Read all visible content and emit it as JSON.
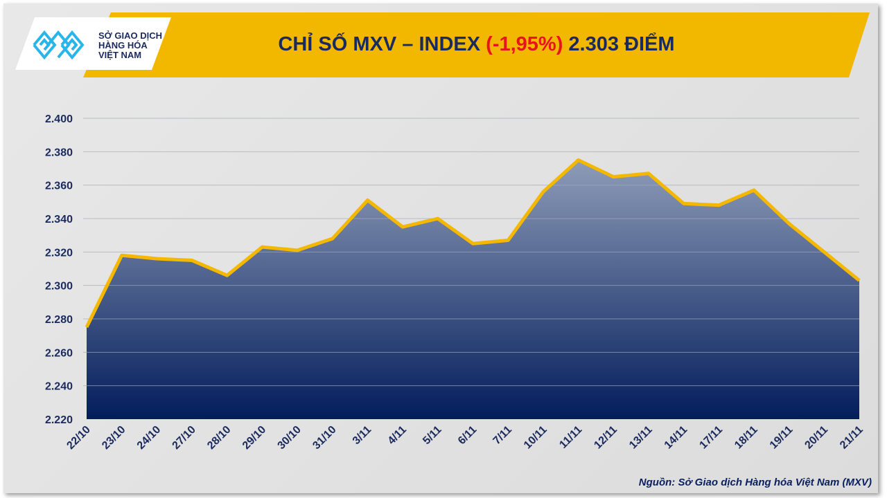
{
  "header": {
    "title_prefix": "CHỈ SỐ MXV – INDEX",
    "title_change": "(-1,95%)",
    "title_suffix": "2.303 ĐIỂM"
  },
  "logo": {
    "line1": "SỞ GIAO DỊCH",
    "line2": "HÀNG HÓA",
    "line3": "VIỆT NAM"
  },
  "source": "Nguồn: Sở Giao dịch Hàng hóa Việt Nam (MXV)",
  "colors": {
    "line": "#f5b800",
    "area_top": "#8e9cb8",
    "area_bottom": "#031d5c",
    "banner": "#f2b800",
    "negative": "#e8141b"
  },
  "chart_data": {
    "type": "area",
    "title": "CHỈ SỐ MXV – INDEX (-1,95%) 2.303 ĐIỂM",
    "categories": [
      "22/10",
      "23/10",
      "24/10",
      "27/10",
      "28/10",
      "29/10",
      "30/10",
      "31/10",
      "3/11",
      "4/11",
      "5/11",
      "6/11",
      "7/11",
      "10/11",
      "11/11",
      "12/11",
      "13/11",
      "14/11",
      "17/11",
      "18/11",
      "19/11",
      "20/11",
      "21/11"
    ],
    "values": [
      2275,
      2318,
      2316,
      2315,
      2306,
      2323,
      2321,
      2328,
      2351,
      2335,
      2340,
      2325,
      2327,
      2356,
      2375,
      2365,
      2367,
      2349,
      2348,
      2357,
      2337,
      2320,
      2303
    ],
    "ylim": [
      2220,
      2400
    ],
    "yticks": [
      "2.220",
      "2.240",
      "2.260",
      "2.280",
      "2.300",
      "2.320",
      "2.340",
      "2.360",
      "2.380",
      "2.400"
    ],
    "grid": true
  }
}
